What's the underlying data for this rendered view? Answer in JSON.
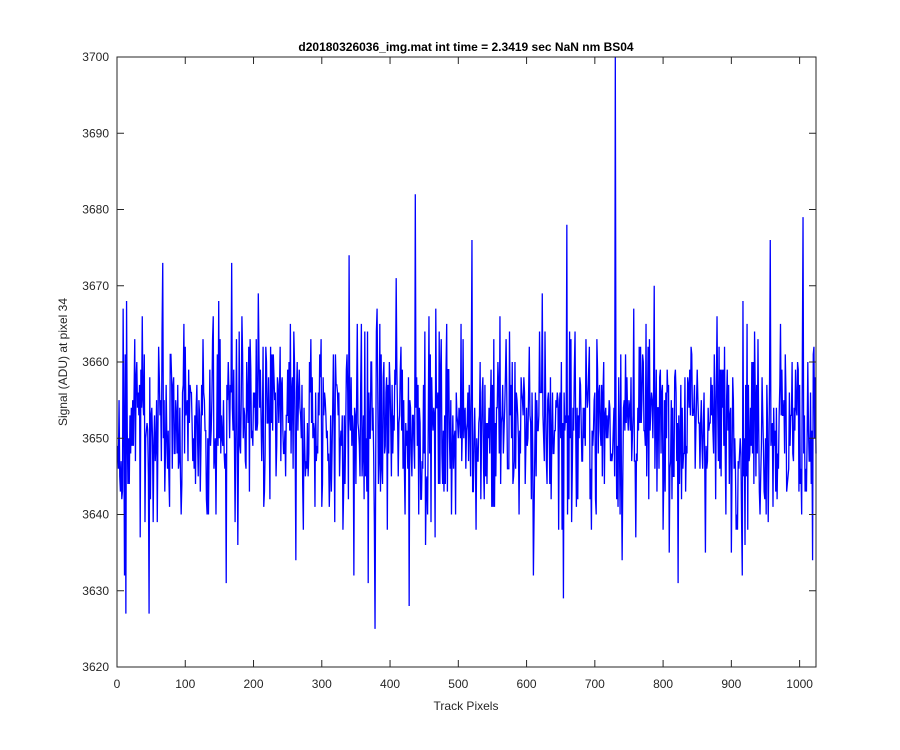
{
  "chart_data": {
    "type": "line",
    "title": "d20180326036_img.mat int time = 2.3419 sec  NaN nm BS04",
    "xlabel": "Track Pixels",
    "ylabel": "Signal (ADU) at pixel 34",
    "xlim": [
      0,
      1024
    ],
    "ylim": [
      3620,
      3700
    ],
    "xticks": [
      0,
      100,
      200,
      300,
      400,
      500,
      600,
      700,
      800,
      900,
      1000
    ],
    "yticks": [
      3620,
      3630,
      3640,
      3650,
      3660,
      3670,
      3680,
      3690,
      3700
    ],
    "grid": false,
    "box": true,
    "line_color": "#0000ff",
    "series": [
      {
        "x_start": 1,
        "x_step": 1,
        "points": 1024,
        "mean": 3652,
        "std": 6.5,
        "clip": [
          3625,
          3700
        ],
        "notable_points": [
          {
            "x": 11,
            "y": 3632
          },
          {
            "x": 13,
            "y": 3627
          },
          {
            "x": 47,
            "y": 3627
          },
          {
            "x": 67,
            "y": 3673
          },
          {
            "x": 160,
            "y": 3631
          },
          {
            "x": 168,
            "y": 3673
          },
          {
            "x": 262,
            "y": 3634
          },
          {
            "x": 340,
            "y": 3674
          },
          {
            "x": 347,
            "y": 3632
          },
          {
            "x": 368,
            "y": 3631
          },
          {
            "x": 378,
            "y": 3625
          },
          {
            "x": 409,
            "y": 3671
          },
          {
            "x": 428,
            "y": 3628
          },
          {
            "x": 437,
            "y": 3682
          },
          {
            "x": 520,
            "y": 3676
          },
          {
            "x": 610,
            "y": 3632
          },
          {
            "x": 654,
            "y": 3629
          },
          {
            "x": 659,
            "y": 3678
          },
          {
            "x": 730,
            "y": 3700
          },
          {
            "x": 757,
            "y": 3667
          },
          {
            "x": 822,
            "y": 3631
          },
          {
            "x": 916,
            "y": 3632
          },
          {
            "x": 957,
            "y": 3676
          },
          {
            "x": 1003,
            "y": 3640
          },
          {
            "x": 1005,
            "y": 3679
          }
        ]
      }
    ]
  }
}
